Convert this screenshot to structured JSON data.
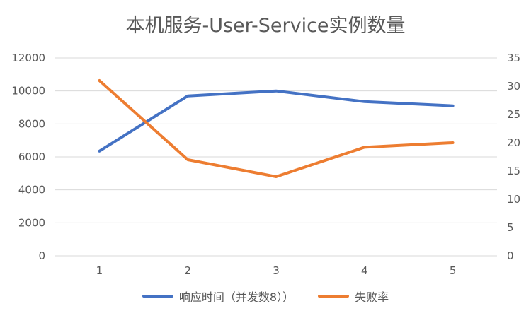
{
  "chart_data": {
    "type": "line",
    "title": "本机服务-User-Service实例数量",
    "categories": [
      "1",
      "2",
      "3",
      "4",
      "5"
    ],
    "y_left": {
      "ticks": [
        "0",
        "2000",
        "4000",
        "6000",
        "8000",
        "10000",
        "12000"
      ],
      "ylim": [
        0,
        12000
      ]
    },
    "y_right": {
      "ticks": [
        "0",
        "5",
        "10",
        "15",
        "20",
        "25",
        "30",
        "35"
      ],
      "ylim": [
        0,
        35
      ]
    },
    "grid": true,
    "legend_position": "bottom",
    "series": [
      {
        "name": "响应时间（并发数8））",
        "axis": "left",
        "color": "#4472C4",
        "values": [
          6350,
          9700,
          10000,
          9350,
          9100
        ]
      },
      {
        "name": "失败率",
        "axis": "right",
        "color": "#ED7D31",
        "values": [
          31,
          17,
          14,
          19.2,
          20
        ]
      }
    ]
  }
}
